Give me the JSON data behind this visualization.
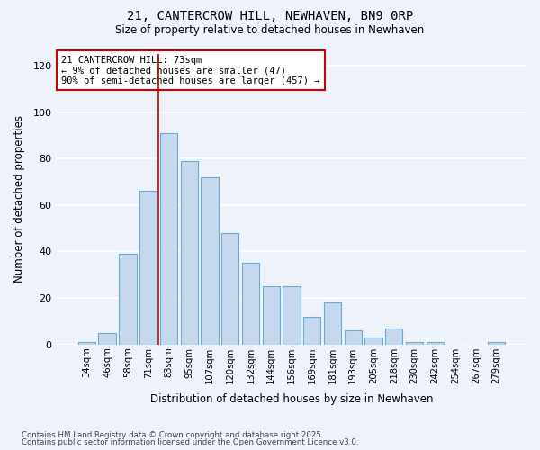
{
  "title_line1": "21, CANTERCROW HILL, NEWHAVEN, BN9 0RP",
  "title_line2": "Size of property relative to detached houses in Newhaven",
  "xlabel": "Distribution of detached houses by size in Newhaven",
  "ylabel": "Number of detached properties",
  "categories": [
    "34sqm",
    "46sqm",
    "58sqm",
    "71sqm",
    "83sqm",
    "95sqm",
    "107sqm",
    "120sqm",
    "132sqm",
    "144sqm",
    "156sqm",
    "169sqm",
    "181sqm",
    "193sqm",
    "205sqm",
    "218sqm",
    "230sqm",
    "242sqm",
    "254sqm",
    "267sqm",
    "279sqm"
  ],
  "values": [
    1,
    5,
    39,
    66,
    91,
    79,
    72,
    48,
    35,
    25,
    25,
    12,
    18,
    6,
    3,
    7,
    1,
    1,
    0,
    0,
    1
  ],
  "bar_color": "#c5d8ee",
  "bar_edge_color": "#6aaad4",
  "background_color": "#eef2fb",
  "grid_color": "#ffffff",
  "vline_color": "#cc0000",
  "annotation_text": "21 CANTERCROW HILL: 73sqm\n← 9% of detached houses are smaller (47)\n90% of semi-detached houses are larger (457) →",
  "annotation_box_color": "#ffffff",
  "annotation_box_edge": "#cc0000",
  "ylim": [
    0,
    125
  ],
  "yticks": [
    0,
    20,
    40,
    60,
    80,
    100,
    120
  ],
  "footnote1": "Contains HM Land Registry data © Crown copyright and database right 2025.",
  "footnote2": "Contains public sector information licensed under the Open Government Licence v3.0."
}
